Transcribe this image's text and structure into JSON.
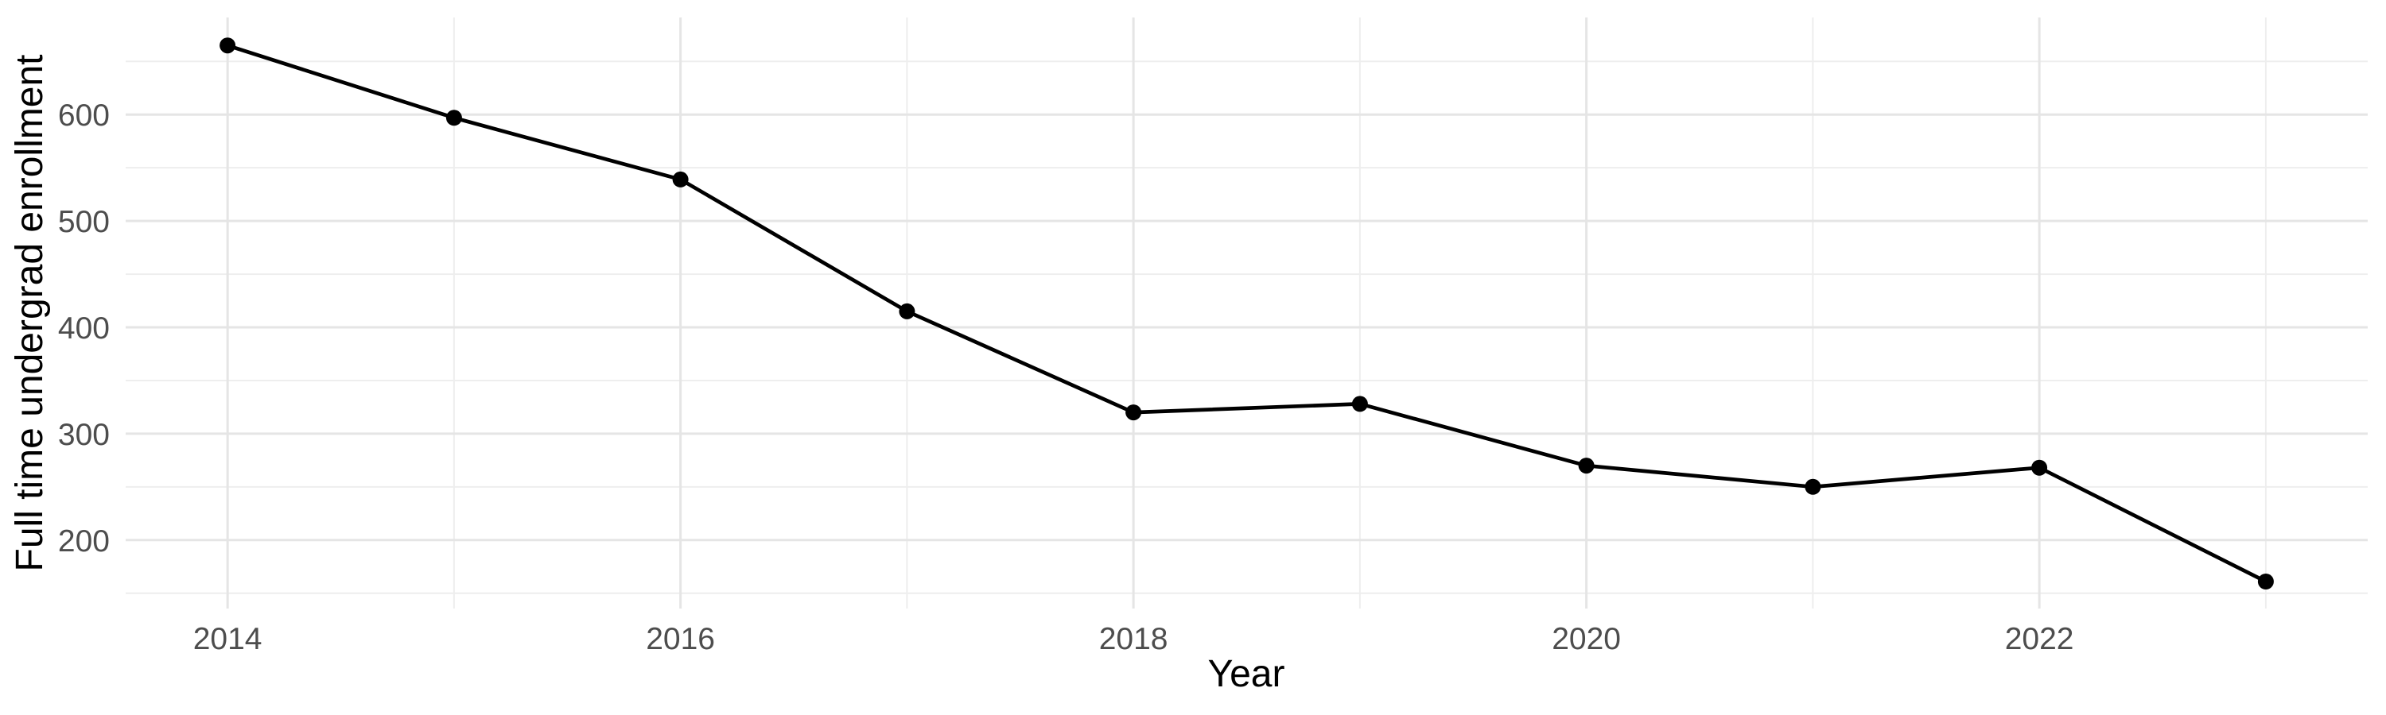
{
  "chart_data": {
    "type": "line",
    "title": "",
    "xlabel": "Year",
    "ylabel": "Full time undergrad enrollment",
    "x": [
      2014,
      2015,
      2016,
      2017,
      2018,
      2019,
      2020,
      2021,
      2022,
      2023
    ],
    "series": [
      {
        "name": "Full time undergrad enrollment",
        "values": [
          665,
          597,
          539,
          415,
          320,
          328,
          270,
          250,
          268,
          161
        ]
      }
    ],
    "x_tick_labels": [
      "2014",
      "2016",
      "2018",
      "2020",
      "2022"
    ],
    "x_major_ticks": [
      2014,
      2016,
      2018,
      2020,
      2022
    ],
    "x_minor_ticks": [
      2015,
      2017,
      2019,
      2021,
      2023
    ],
    "y_tick_labels": [
      "200",
      "300",
      "400",
      "500",
      "600"
    ],
    "y_major_ticks": [
      200,
      300,
      400,
      500,
      600
    ],
    "y_minor_ticks": [
      150,
      250,
      350,
      450,
      550,
      650
    ],
    "xlim": [
      2013.55,
      2023.45
    ],
    "ylim": [
      135.6,
      691.3
    ],
    "grid": "on",
    "legend": "none",
    "colors": {
      "line": "#000000",
      "point": "#000000",
      "grid_major": "#E5E5E5",
      "grid_minor": "#EEEEEE",
      "tick_label": "#4D4D4D",
      "axis_title": "#000000",
      "background": "#FFFFFF"
    }
  }
}
